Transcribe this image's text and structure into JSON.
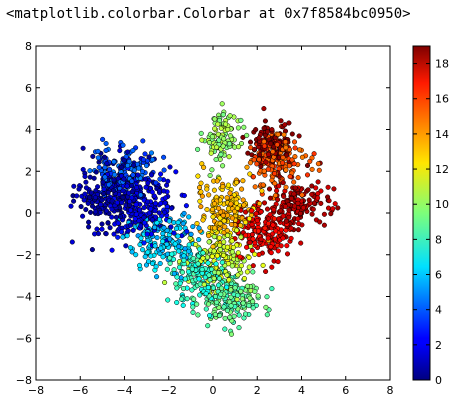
{
  "notebook_output": {
    "repr_text": "<matplotlib.colorbar.Colorbar at 0x7f8584bc0950>"
  },
  "chart_data": {
    "type": "scatter",
    "title": "",
    "xlabel": "",
    "ylabel": "",
    "xlim": [
      -8,
      8
    ],
    "ylim": [
      -8,
      8
    ],
    "x_ticks": [
      "−8",
      "−6",
      "−4",
      "−2",
      "0",
      "2",
      "4",
      "6",
      "8"
    ],
    "y_ticks": [
      "8",
      "6",
      "4",
      "2",
      "0",
      "−2",
      "−4",
      "−6",
      "−8"
    ],
    "grid": false,
    "colormap": "jet",
    "color_range": [
      0,
      19
    ],
    "colorbar_ticks": [
      "18",
      "16",
      "14",
      "12",
      "10",
      "8",
      "6",
      "4",
      "2",
      "0"
    ],
    "marker_edge_color": "#000000",
    "clusters": [
      {
        "label_value": 1,
        "center": [
          -4.6,
          1.0
        ],
        "spread": [
          1.1,
          1.1
        ],
        "count": 260
      },
      {
        "label_value": 2,
        "center": [
          -3.2,
          0.3
        ],
        "spread": [
          1.0,
          1.1
        ],
        "count": 200
      },
      {
        "label_value": 4,
        "center": [
          -4.0,
          2.0
        ],
        "spread": [
          1.0,
          0.8
        ],
        "count": 130
      },
      {
        "label_value": 6,
        "center": [
          -2.3,
          -1.4
        ],
        "spread": [
          1.0,
          0.9
        ],
        "count": 170
      },
      {
        "label_value": 8,
        "center": [
          -0.6,
          -3.0
        ],
        "spread": [
          0.9,
          0.9
        ],
        "count": 160
      },
      {
        "label_value": 9,
        "center": [
          0.7,
          -4.2
        ],
        "spread": [
          0.9,
          0.8
        ],
        "count": 170
      },
      {
        "label_value": 10,
        "center": [
          0.4,
          3.6
        ],
        "spread": [
          0.6,
          0.8
        ],
        "count": 110
      },
      {
        "label_value": 11,
        "center": [
          0.3,
          -2.2
        ],
        "spread": [
          1.0,
          1.0
        ],
        "count": 150
      },
      {
        "label_value": 13,
        "center": [
          0.6,
          0.3
        ],
        "spread": [
          0.9,
          1.0
        ],
        "count": 170
      },
      {
        "label_value": 15,
        "center": [
          2.8,
          2.5
        ],
        "spread": [
          0.9,
          0.9
        ],
        "count": 150
      },
      {
        "label_value": 17,
        "center": [
          2.3,
          -0.9
        ],
        "spread": [
          0.8,
          0.9
        ],
        "count": 170
      },
      {
        "label_value": 18,
        "center": [
          3.9,
          0.4
        ],
        "spread": [
          0.9,
          0.8
        ],
        "count": 150
      },
      {
        "label_value": 19,
        "center": [
          2.6,
          3.3
        ],
        "spread": [
          0.7,
          0.6
        ],
        "count": 120
      }
    ]
  }
}
